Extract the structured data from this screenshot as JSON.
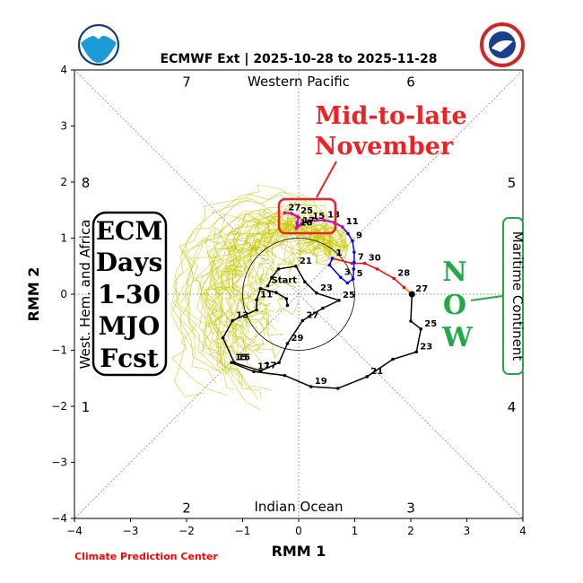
{
  "chart_data": {
    "type": "line",
    "title": "ECMWF Ext | 2025-10-28 to 2025-11-28",
    "xlabel": "RMM 1",
    "ylabel": "RMM 2",
    "xlim": [
      -4,
      4
    ],
    "ylim": [
      -4,
      4
    ],
    "xticks": [
      -4,
      -3,
      -2,
      -1,
      0,
      1,
      2,
      3,
      4
    ],
    "yticks": [
      -4,
      -3,
      -2,
      -1,
      0,
      1,
      2,
      3,
      4
    ],
    "tick_labels": [
      "−4",
      "−3",
      "−2",
      "−1",
      "0",
      "1",
      "2",
      "3",
      "4"
    ],
    "region_labels": {
      "top": "Western Pacific",
      "bottom": "Indian Ocean",
      "left": "West. Hem. and Africa",
      "right": "Maritime Continent"
    },
    "phase_labels": [
      {
        "phase": "7",
        "x": -2,
        "y": 3.8
      },
      {
        "phase": "6",
        "x": 2,
        "y": 3.8
      },
      {
        "phase": "8",
        "x": -3.8,
        "y": 2
      },
      {
        "phase": "5",
        "x": 3.8,
        "y": 2
      },
      {
        "phase": "1",
        "x": -3.8,
        "y": -2
      },
      {
        "phase": "4",
        "x": 3.8,
        "y": -2
      },
      {
        "phase": "2",
        "x": -2,
        "y": -3.8
      },
      {
        "phase": "3",
        "x": 2,
        "y": -3.8
      }
    ],
    "unit_circle_radius": 1,
    "grid": false,
    "annotations": {
      "box_text": [
        "ECM",
        "Days",
        "1-30",
        "MJO",
        "Fcst"
      ],
      "callout_text": [
        "Mid-to-late",
        "November"
      ],
      "now_text": [
        "N",
        "O",
        "W"
      ]
    },
    "observed": [
      {
        "day": "1",
        "x": 0.6,
        "y": 0.64
      },
      {
        "day": "",
        "x": 0.55,
        "y": 0.52
      },
      {
        "day": "3",
        "x": 0.75,
        "y": 0.3
      },
      {
        "day": "",
        "x": 0.87,
        "y": 0.2
      },
      {
        "day": "5",
        "x": 0.97,
        "y": 0.27
      },
      {
        "day": "",
        "x": 0.98,
        "y": 0.45
      },
      {
        "day": "7",
        "x": 0.99,
        "y": 0.57
      },
      {
        "day": "",
        "x": 0.99,
        "y": 0.75
      },
      {
        "day": "9",
        "x": 0.96,
        "y": 0.95
      },
      {
        "day": "",
        "x": 0.88,
        "y": 1.08
      },
      {
        "day": "11",
        "x": 0.78,
        "y": 1.2
      },
      {
        "day": "",
        "x": 0.63,
        "y": 1.28
      },
      {
        "day": "13",
        "x": 0.45,
        "y": 1.32
      },
      {
        "day": "",
        "x": 0.32,
        "y": 1.32
      },
      {
        "day": "15",
        "x": 0.18,
        "y": 1.3
      },
      {
        "day": "",
        "x": 0.06,
        "y": 1.27
      },
      {
        "day": "17",
        "x": 0.0,
        "y": 1.22
      },
      {
        "day": "18",
        "x": -0.04,
        "y": 1.18
      },
      {
        "day": "",
        "x": -0.03,
        "y": 1.27
      },
      {
        "day": "",
        "x": 0.0,
        "y": 1.37
      },
      {
        "day": "25",
        "x": -0.03,
        "y": 1.39
      },
      {
        "day": "",
        "x": -0.13,
        "y": 1.44
      },
      {
        "day": "27",
        "x": -0.25,
        "y": 1.45
      }
    ],
    "forecast_ensemble_mean": [
      {
        "day": "Start",
        "x": -0.55,
        "y": 0.15
      },
      {
        "day": "",
        "x": -0.48,
        "y": 0.3
      },
      {
        "day": "",
        "x": -0.36,
        "y": 0.45
      },
      {
        "day": "21",
        "x": -0.05,
        "y": 0.5
      },
      {
        "day": "",
        "x": 0.11,
        "y": 0.22
      },
      {
        "day": "23",
        "x": 0.32,
        "y": 0.02
      },
      {
        "day": "25",
        "x": 0.72,
        "y": -0.11
      },
      {
        "day": "",
        "x": 0.43,
        "y": -0.25
      },
      {
        "day": "27",
        "x": 0.07,
        "y": -0.47
      },
      {
        "day": "29",
        "x": -0.2,
        "y": -0.88
      },
      {
        "day": "",
        "x": -0.35,
        "y": -1.22
      },
      {
        "day": "17",
        "x": -0.68,
        "y": -1.37
      },
      {
        "day": "15",
        "x": -1.15,
        "y": -1.22
      },
      {
        "day": "",
        "x": -1.35,
        "y": -0.78
      },
      {
        "day": "13",
        "x": -1.18,
        "y": -0.47
      },
      {
        "day": "",
        "x": -0.75,
        "y": -0.28
      },
      {
        "day": "11",
        "x": -0.75,
        "y": -0.1
      },
      {
        "day": "",
        "x": -0.68,
        "y": 0.1
      },
      {
        "day": "",
        "x": -0.4,
        "y": 0.03
      },
      {
        "day": "",
        "x": -0.22,
        "y": -0.08
      },
      {
        "day": "",
        "x": -0.2,
        "y": -0.2
      }
    ],
    "forecast_lower_loop": [
      {
        "day": "",
        "x": 2.02,
        "y": 0.0
      },
      {
        "day": "27",
        "x": 2.02,
        "y": 0.0
      },
      {
        "day": "",
        "x": 2.0,
        "y": -0.48
      },
      {
        "day": "25",
        "x": 2.18,
        "y": -0.62
      },
      {
        "day": "23",
        "x": 2.1,
        "y": -1.03
      },
      {
        "day": "",
        "x": 1.68,
        "y": -1.16
      },
      {
        "day": "21",
        "x": 1.22,
        "y": -1.47
      },
      {
        "day": "",
        "x": 0.7,
        "y": -1.68
      },
      {
        "day": "19",
        "x": 0.22,
        "y": -1.65
      },
      {
        "day": "",
        "x": -0.25,
        "y": -1.45
      },
      {
        "day": "17",
        "x": -0.8,
        "y": -1.38
      },
      {
        "day": "15",
        "x": -1.2,
        "y": -1.22
      }
    ],
    "observed_red_segment": [
      {
        "day": "1",
        "x": 0.6,
        "y": 0.64
      },
      {
        "day": "",
        "x": 0.95,
        "y": 0.55
      },
      {
        "day": "30",
        "x": 1.18,
        "y": 0.55
      },
      {
        "day": "",
        "x": 1.4,
        "y": 0.45
      },
      {
        "day": "28",
        "x": 1.7,
        "y": 0.28
      },
      {
        "day": "",
        "x": 1.88,
        "y": 0.12
      }
    ],
    "colors": {
      "ensemble": "#c8c800",
      "observed_red": "#ff0000",
      "observed_blue": "#0000ff",
      "observed_magenta": "#cc00cc",
      "forecast_black": "#000000",
      "orange": "#ff8c00",
      "callout_red": "#ee2222",
      "now_green": "#22aa44"
    }
  },
  "credit": "Climate Prediction Center",
  "logos": {
    "left": "noaa-logo",
    "right": "national-weather-service-logo"
  }
}
